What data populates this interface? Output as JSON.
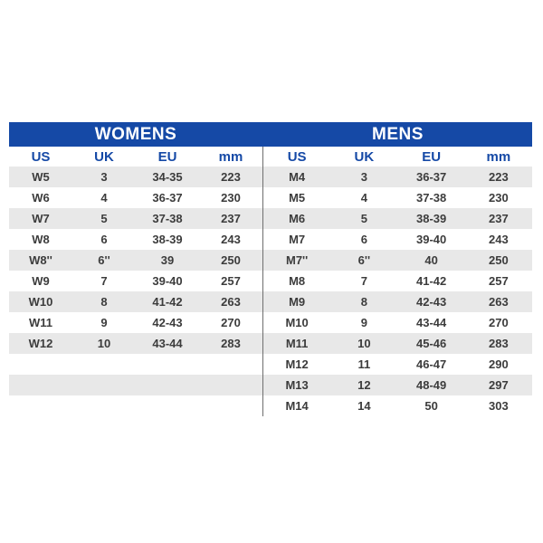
{
  "colors": {
    "band_blue": "#1549a6",
    "header_text_blue": "#1549a6",
    "row_gray": "#e8e8e8",
    "data_text": "#3c3c3c",
    "divider_gray": "#6e6e6e",
    "band_text": "#ffffff",
    "page_background": "#ffffff"
  },
  "chart_data": [
    {
      "type": "table",
      "title": "WOMENS",
      "columns": [
        "US",
        "UK",
        "EU",
        "mm"
      ],
      "rows": [
        [
          "W5",
          "3",
          "34-35",
          "223"
        ],
        [
          "W6",
          "4",
          "36-37",
          "230"
        ],
        [
          "W7",
          "5",
          "37-38",
          "237"
        ],
        [
          "W8",
          "6",
          "38-39",
          "243"
        ],
        [
          "W8''",
          "6''",
          "39",
          "250"
        ],
        [
          "W9",
          "7",
          "39-40",
          "257"
        ],
        [
          "W10",
          "8",
          "41-42",
          "263"
        ],
        [
          "W11",
          "9",
          "42-43",
          "270"
        ],
        [
          "W12",
          "10",
          "43-44",
          "283"
        ]
      ]
    },
    {
      "type": "table",
      "title": "MENS",
      "columns": [
        "US",
        "UK",
        "EU",
        "mm"
      ],
      "rows": [
        [
          "M4",
          "3",
          "36-37",
          "223"
        ],
        [
          "M5",
          "4",
          "37-38",
          "230"
        ],
        [
          "M6",
          "5",
          "38-39",
          "237"
        ],
        [
          "M7",
          "6",
          "39-40",
          "243"
        ],
        [
          "M7''",
          "6''",
          "40",
          "250"
        ],
        [
          "M8",
          "7",
          "41-42",
          "257"
        ],
        [
          "M9",
          "8",
          "42-43",
          "263"
        ],
        [
          "M10",
          "9",
          "43-44",
          "270"
        ],
        [
          "M11",
          "10",
          "45-46",
          "283"
        ],
        [
          "M12",
          "11",
          "46-47",
          "290"
        ],
        [
          "M13",
          "12",
          "48-49",
          "297"
        ],
        [
          "M14",
          "14",
          "50",
          "303"
        ]
      ]
    }
  ]
}
